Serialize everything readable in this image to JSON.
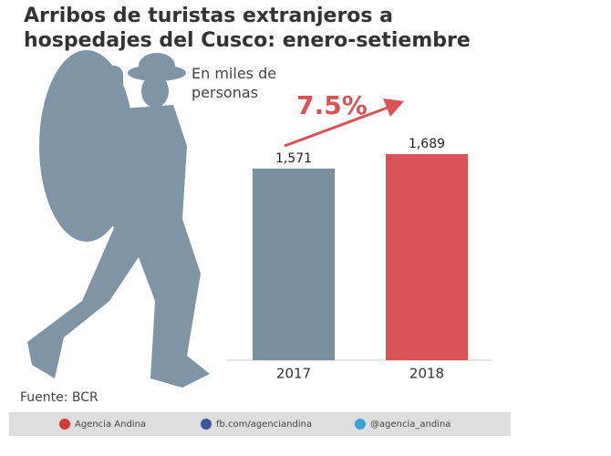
{
  "chart_data": {
    "type": "bar",
    "title": "Arribos de turistas extranjeros a hospedajes del Cusco: enero-setiembre",
    "subtitle": "En miles de personas",
    "annotation": "7.5%",
    "categories": [
      "2017",
      "2018"
    ],
    "values": [
      1571,
      1689
    ],
    "value_labels": [
      "1,571",
      "1,689"
    ],
    "colors": [
      "#7b909f",
      "#d85256"
    ],
    "source": "Fuente: BCR",
    "footer": [
      "Agencia Andina",
      "fb.com/agenciandina",
      "@agencia_andina"
    ]
  }
}
